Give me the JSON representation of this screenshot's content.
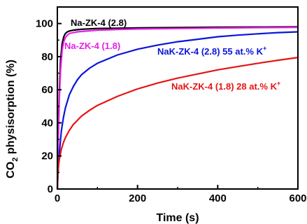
{
  "chart_data": {
    "type": "line",
    "xlabel": "Time (s)",
    "ylabel": "CO₂ physisorption (%)",
    "ylabel_parts": {
      "prefix": "CO",
      "sub": "2",
      "suffix": " physisorption (%)"
    },
    "xlim": [
      0,
      600
    ],
    "ylim": [
      0,
      110
    ],
    "xticks": [
      0,
      200,
      400,
      600
    ],
    "yticks": [
      0,
      20,
      40,
      60,
      80,
      100
    ],
    "grid": false,
    "legend": "inline",
    "series": [
      {
        "name": "Na-ZK-4 (2.8)",
        "color": "#000000",
        "x": [
          0,
          2,
          5,
          8,
          12,
          16,
          20,
          25,
          30,
          40,
          50,
          60,
          80,
          100,
          150,
          200,
          300,
          400,
          500,
          600
        ],
        "y": [
          0,
          30,
          60,
          78,
          88,
          92,
          94,
          95,
          95.5,
          96,
          96.3,
          96.5,
          96.8,
          97,
          97.2,
          97.4,
          97.6,
          97.8,
          97.9,
          98
        ]
      },
      {
        "name": "Na-ZK-4 (1.8)",
        "color": "#e61ee6",
        "x": [
          0,
          2,
          5,
          8,
          12,
          16,
          20,
          25,
          30,
          40,
          50,
          60,
          80,
          100,
          150,
          200,
          300,
          400,
          500,
          600
        ],
        "y": [
          0,
          25,
          55,
          72,
          84,
          89,
          91.5,
          93,
          94,
          94.5,
          95,
          95.2,
          95.6,
          96,
          96.4,
          96.7,
          97,
          97.3,
          97.5,
          97.7
        ]
      },
      {
        "name": "NaK-ZK-4 (2.8) 55 at.% K⁺",
        "label_parts": {
          "text": "NaK-ZK-4 (2.8) 55 at.% K",
          "sup": "+"
        },
        "color": "#0a14dc",
        "x": [
          0,
          2,
          5,
          10,
          15,
          20,
          30,
          40,
          50,
          60,
          80,
          100,
          150,
          200,
          250,
          300,
          350,
          400,
          450,
          500,
          550,
          600
        ],
        "y": [
          0,
          10,
          22,
          35,
          43,
          49,
          57,
          62,
          66,
          69,
          73,
          76,
          81,
          84.5,
          87,
          89,
          90.5,
          92,
          93,
          93.8,
          94.5,
          95
        ]
      },
      {
        "name": "NaK-ZK-4 (1.8) 28 at.% K⁺",
        "label_parts": {
          "text": "NaK-ZK-4 (1.8) 28 at.% K",
          "sup": "+"
        },
        "color": "#e61414",
        "x": [
          0,
          2,
          5,
          10,
          15,
          20,
          30,
          40,
          50,
          60,
          80,
          100,
          150,
          200,
          250,
          300,
          350,
          400,
          450,
          500,
          550,
          600
        ],
        "y": [
          0,
          12,
          18,
          24,
          28,
          31,
          35.5,
          39,
          41.5,
          44,
          47.5,
          50.5,
          56,
          60.5,
          64,
          67,
          69.5,
          72,
          74,
          76,
          77.8,
          79.5
        ]
      }
    ]
  }
}
